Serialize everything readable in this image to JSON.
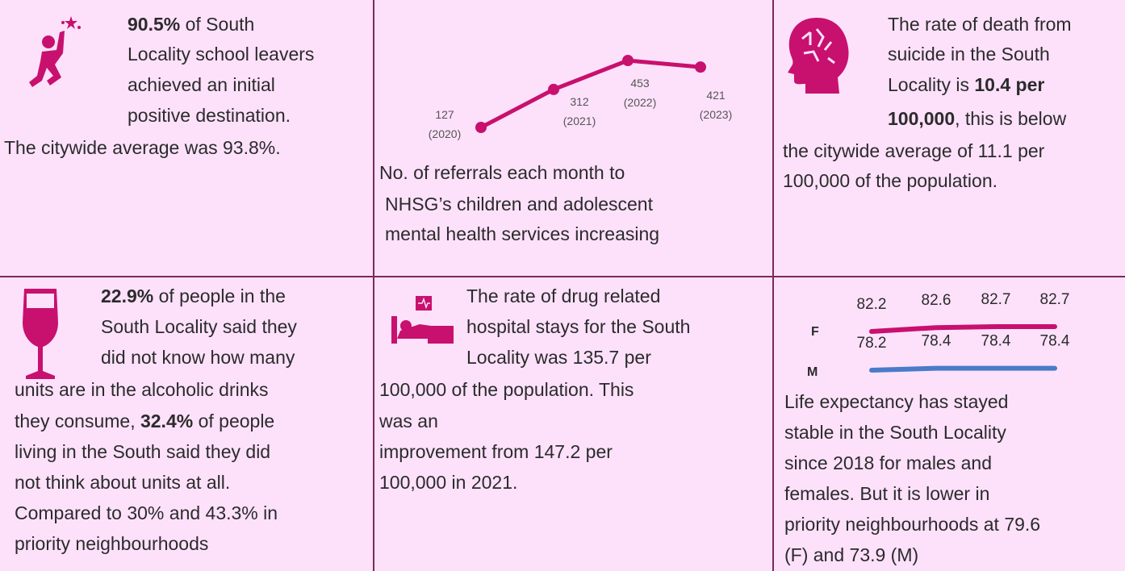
{
  "panels": [
    {
      "lines": [
        [
          {
            "text": "90.5%",
            "bold": true
          },
          {
            "text": " of South"
          }
        ],
        [
          {
            "text": "Locality school leavers"
          }
        ],
        [
          {
            "text": "achieved an initial"
          }
        ],
        [
          {
            "text": "positive destination."
          }
        ],
        [
          {
            "text": "The citywide average was 93.8%."
          }
        ]
      ]
    },
    {
      "lines": [
        [
          {
            "text": "No. of referrals each month to"
          }
        ],
        [
          {
            "text": "NHSG’s children and adolescent"
          }
        ],
        [
          {
            "text": "mental health services increasing"
          }
        ]
      ],
      "chart": {
        "type": "line",
        "color": "#c8106e",
        "x": [
          "(2020)",
          "(2021)",
          "(2022)",
          "(2023)"
        ],
        "values": [
          127,
          312,
          453,
          421
        ]
      }
    },
    {
      "lines": [
        [
          {
            "text": "The rate of death from"
          }
        ],
        [
          {
            "text": "suicide in the South"
          }
        ],
        [
          {
            "text": "Locality is "
          },
          {
            "text": "10.4 per",
            "bold": true
          }
        ],
        [
          {
            "text": "100,000",
            "bold": true
          },
          {
            "text": ", this is below"
          }
        ],
        [
          {
            "text": "the citywide average of 11.1 per"
          }
        ],
        [
          {
            "text": "100,000 of the population."
          }
        ]
      ]
    },
    {
      "lines": [
        [
          {
            "text": "22.9%",
            "bold": true
          },
          {
            "text": " of people in the"
          }
        ],
        [
          {
            "text": "South Locality said they"
          }
        ],
        [
          {
            "text": "did not know how many"
          }
        ],
        [
          {
            "text": "units are in the alcoholic drinks"
          }
        ],
        [
          {
            "text": "they consume, "
          },
          {
            "text": "32.4%",
            "bold": true
          },
          {
            "text": " of people"
          }
        ],
        [
          {
            "text": "living in the South said they did"
          }
        ],
        [
          {
            "text": "not think about units at all."
          }
        ],
        [
          {
            "text": "Compared to 30% and 43.3% in"
          }
        ],
        [
          {
            "text": "priority neighbourhoods"
          }
        ]
      ]
    },
    {
      "lines": [
        [
          {
            "text": "The rate of drug related"
          }
        ],
        [
          {
            "text": "hospital stays for the South"
          }
        ],
        [
          {
            "text": "Locality was 135.7 per"
          }
        ],
        [
          {
            "text": "100,000 of the population. This"
          }
        ],
        [
          {
            "text": "was an"
          }
        ],
        [
          {
            "text": "improvement from 147.2 per"
          }
        ],
        [
          {
            "text": "100,000 in 2021."
          }
        ]
      ]
    },
    {
      "lines": [
        [
          {
            "text": "Life expectancy has stayed"
          }
        ],
        [
          {
            "text": "stable in the South Locality"
          }
        ],
        [
          {
            "text": "since 2018 for males and"
          }
        ],
        [
          {
            "text": "females. But it is lower in"
          }
        ],
        [
          {
            "text": "priority neighbourhoods at 79.6"
          }
        ],
        [
          {
            "text": "(F) and 73.9 (M)"
          }
        ]
      ],
      "chart": {
        "type": "line",
        "series": [
          {
            "name": "F",
            "color": "#c8106e",
            "values": [
              82.2,
              82.6,
              82.7,
              82.7
            ]
          },
          {
            "name": "M",
            "color": "#4a7bc8",
            "values": [
              78.2,
              78.4,
              78.4,
              78.4
            ]
          }
        ]
      }
    }
  ]
}
